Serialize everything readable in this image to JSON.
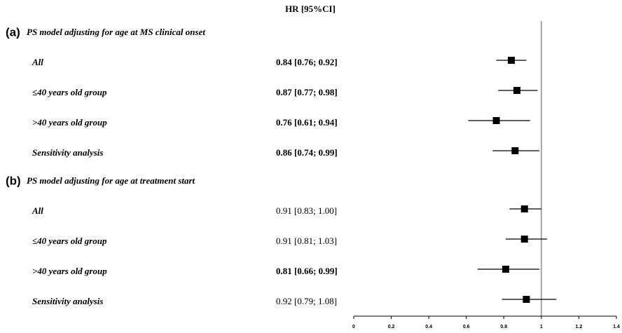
{
  "chart_data": {
    "type": "forest",
    "column_header": "HR [95%CI]",
    "groups": [
      {
        "tag": "(a)",
        "title": "PS model adjusting for age at MS clinical onset",
        "rows": [
          {
            "label": "All",
            "text": "0.84 [0.76; 0.92]",
            "bold": true,
            "hr": 0.84,
            "lo": 0.76,
            "hi": 0.92
          },
          {
            "label": "≤40 years old group",
            "text": "0.87 [0.77; 0.98]",
            "bold": true,
            "hr": 0.87,
            "lo": 0.77,
            "hi": 0.98
          },
          {
            "label": ">40 years old group",
            "text": "0.76 [0.61; 0.94]",
            "bold": true,
            "hr": 0.76,
            "lo": 0.61,
            "hi": 0.94
          },
          {
            "label": "Sensitivity analysis",
            "text": "0.86 [0.74; 0.99]",
            "bold": true,
            "hr": 0.86,
            "lo": 0.74,
            "hi": 0.99
          }
        ]
      },
      {
        "tag": "(b)",
        "title": "PS model adjusting for age at treatment start",
        "rows": [
          {
            "label": "All",
            "text": "0.91 [0.83; 1.00]",
            "bold": false,
            "hr": 0.91,
            "lo": 0.83,
            "hi": 1.0
          },
          {
            "label": "≤40 years old group",
            "text": "0.91 [0.81; 1.03]",
            "bold": false,
            "hr": 0.91,
            "lo": 0.81,
            "hi": 1.03
          },
          {
            "label": ">40 years old group",
            "text": "0.81 [0.66; 0.99]",
            "bold": true,
            "hr": 0.81,
            "lo": 0.66,
            "hi": 0.99
          },
          {
            "label": "Sensitivity analysis",
            "text": "0.92 [0.79; 1.08]",
            "bold": false,
            "hr": 0.92,
            "lo": 0.79,
            "hi": 1.08
          }
        ]
      }
    ],
    "ref_line": 1,
    "xlim": [
      0,
      1.4
    ],
    "xticks": [
      0,
      0.2,
      0.4,
      0.6,
      0.8,
      1,
      1.2,
      1.4
    ],
    "color": "#000000",
    "ref_color": "#a6a6a6"
  }
}
